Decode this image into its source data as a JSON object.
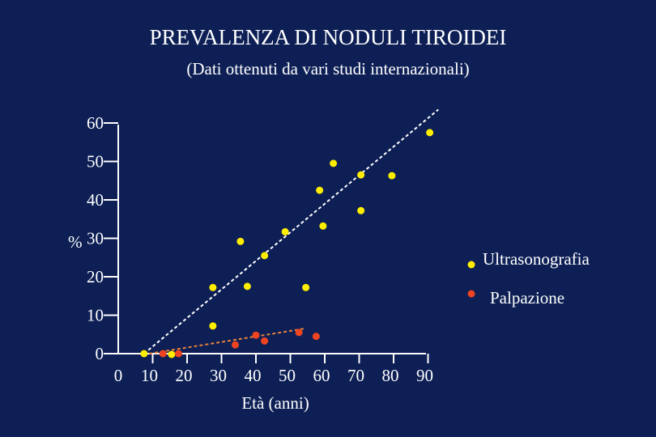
{
  "chart_data": {
    "type": "scatter",
    "title": "PREVALENZA DI NODULI TIROIDEI",
    "subtitle": "(Dati ottenuti da vari studi internazionali)",
    "xlabel": "Età (anni)",
    "ylabel": "%",
    "xlim": [
      0,
      90
    ],
    "ylim": [
      0,
      60
    ],
    "x_ticks": [
      "0",
      "10",
      "20",
      "30",
      "40",
      "50",
      "60",
      "70",
      "80",
      "90"
    ],
    "y_ticks": [
      "0",
      "10",
      "20",
      "30",
      "40",
      "50",
      "60"
    ],
    "grid": false,
    "legend_position": "right",
    "series": [
      {
        "name": "Ultrasonografia",
        "color": "#ffee00",
        "trendline": [
          [
            7.5,
            0
          ],
          [
            93,
            63.5
          ]
        ],
        "points": [
          [
            7.5,
            0
          ],
          [
            15.5,
            -0.2
          ],
          [
            27.5,
            7.2
          ],
          [
            27.5,
            17.2
          ],
          [
            35.5,
            29.2
          ],
          [
            37.5,
            17.5
          ],
          [
            42.5,
            25.5
          ],
          [
            48.5,
            31.7
          ],
          [
            54.5,
            17.2
          ],
          [
            58.5,
            42.5
          ],
          [
            59.5,
            33.2
          ],
          [
            62.5,
            49.5
          ],
          [
            70.5,
            46.5
          ],
          [
            70.5,
            37.2
          ],
          [
            79.5,
            46.3
          ],
          [
            90.5,
            57.5
          ]
        ]
      },
      {
        "name": "Palpazione",
        "color": "#ee4422",
        "trendline": [
          [
            9,
            0
          ],
          [
            54,
            6.5
          ]
        ],
        "points": [
          [
            13,
            0
          ],
          [
            17.5,
            0
          ],
          [
            34,
            2.3
          ],
          [
            40,
            4.8
          ],
          [
            42.5,
            3.3
          ],
          [
            52.5,
            5.5
          ],
          [
            57.5,
            4.5
          ]
        ]
      }
    ]
  }
}
